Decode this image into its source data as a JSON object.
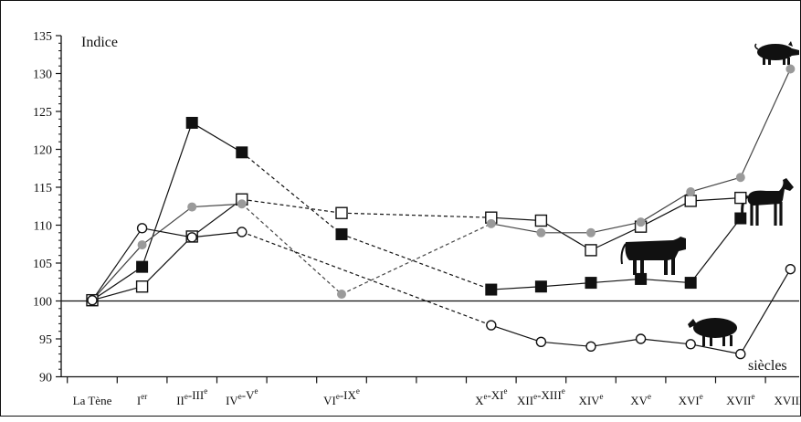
{
  "chart_data": {
    "type": "line",
    "ylabel": "Indice",
    "xlabel": "siècles",
    "ylim": [
      90,
      135
    ],
    "y_ticks": [
      90,
      95,
      100,
      105,
      110,
      115,
      120,
      125,
      130,
      135
    ],
    "reference_line": 100,
    "categories": [
      {
        "label": "La Tène",
        "x": 0,
        "sup": ""
      },
      {
        "label": "I",
        "x": 1,
        "sup": "er"
      },
      {
        "label": "II-III",
        "x": 2,
        "sup": "e"
      },
      {
        "label": "IV-V",
        "x": 3,
        "sup": "e"
      },
      {
        "label": "VI-IX",
        "x": 5,
        "sup": "e"
      },
      {
        "label": "X-XI",
        "x": 8,
        "sup": "e"
      },
      {
        "label": "XII-XIII",
        "x": 9,
        "sup": "e"
      },
      {
        "label": "XIV",
        "x": 10,
        "sup": "e"
      },
      {
        "label": "XV",
        "x": 11,
        "sup": "e"
      },
      {
        "label": "XVI",
        "x": 12,
        "sup": "e"
      },
      {
        "label": "XVII",
        "x": 13,
        "sup": "e"
      },
      {
        "label": "XVIII",
        "x": 14,
        "sup": "e"
      }
    ],
    "category_label_text": [
      "La Tène",
      "Ier",
      "IIe-IIIe",
      "IVe-Ve",
      "VIe-IXe",
      "Xe-XIe",
      "XIIe-XIIIe",
      "XIVe",
      "XVe",
      "XVIe",
      "XVIIe",
      "XVIIIe"
    ],
    "series": [
      {
        "marker": "filled-square",
        "animal_icon": "horse-icon",
        "color": "#111111",
        "points": [
          {
            "x": 0,
            "y": 100.1
          },
          {
            "x": 1,
            "y": 104.5
          },
          {
            "x": 2,
            "y": 123.5
          },
          {
            "x": 3,
            "y": 119.6
          },
          {
            "x": 5,
            "y": 108.8,
            "dashed_in": true
          },
          {
            "x": 8,
            "y": 101.5,
            "dashed_in": true
          },
          {
            "x": 9,
            "y": 101.9
          },
          {
            "x": 10,
            "y": 102.4
          },
          {
            "x": 11,
            "y": 102.9
          },
          {
            "x": 12,
            "y": 102.4
          },
          {
            "x": 13,
            "y": 110.9
          }
        ]
      },
      {
        "marker": "open-square",
        "animal_icon": "cattle-icon",
        "color": "#111111",
        "points": [
          {
            "x": 0,
            "y": 100.1
          },
          {
            "x": 1,
            "y": 101.9
          },
          {
            "x": 2,
            "y": 108.5
          },
          {
            "x": 3,
            "y": 113.4
          },
          {
            "x": 5,
            "y": 111.6,
            "dashed_in": true
          },
          {
            "x": 8,
            "y": 111.0,
            "dashed_in": true
          },
          {
            "x": 9,
            "y": 110.6
          },
          {
            "x": 10,
            "y": 106.7
          },
          {
            "x": 11,
            "y": 109.8
          },
          {
            "x": 12,
            "y": 113.2
          },
          {
            "x": 13,
            "y": 113.6
          }
        ]
      },
      {
        "marker": "grey-dot",
        "animal_icon": "pig-icon",
        "color": "#9a9a9a",
        "points": [
          {
            "x": 0,
            "y": 100.1
          },
          {
            "x": 1,
            "y": 107.4
          },
          {
            "x": 2,
            "y": 112.4
          },
          {
            "x": 3,
            "y": 112.8
          },
          {
            "x": 5,
            "y": 100.9,
            "dashed_in": true
          },
          {
            "x": 8,
            "y": 110.2,
            "dashed_in": true
          },
          {
            "x": 9,
            "y": 109.0
          },
          {
            "x": 10,
            "y": 109.0
          },
          {
            "x": 11,
            "y": 110.4
          },
          {
            "x": 12,
            "y": 114.4
          },
          {
            "x": 13,
            "y": 116.3
          },
          {
            "x": 14,
            "y": 130.6
          }
        ]
      },
      {
        "marker": "open-circle",
        "animal_icon": "sheep-icon",
        "color": "#111111",
        "points": [
          {
            "x": 0,
            "y": 100.1
          },
          {
            "x": 1,
            "y": 109.6
          },
          {
            "x": 2,
            "y": 108.4
          },
          {
            "x": 3,
            "y": 109.1
          },
          {
            "x": 8,
            "y": 96.8,
            "dashed_in": true
          },
          {
            "x": 9,
            "y": 94.6
          },
          {
            "x": 10,
            "y": 94.0
          },
          {
            "x": 11,
            "y": 95.0
          },
          {
            "x": 12,
            "y": 94.3
          },
          {
            "x": 13,
            "y": 93.0
          },
          {
            "x": 14,
            "y": 104.2
          }
        ]
      }
    ]
  }
}
